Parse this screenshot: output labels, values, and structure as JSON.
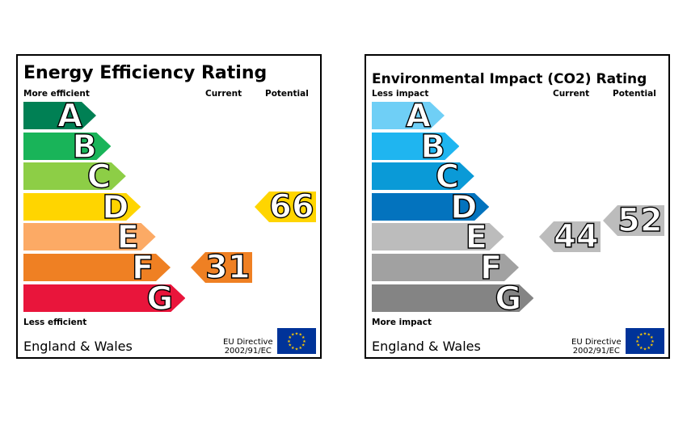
{
  "energy": {
    "title": "Energy Efficiency Rating",
    "top_label": "More efficient",
    "bottom_label": "Less efficient",
    "col_current": "Current",
    "col_potential": "Potential",
    "region": "England & Wales",
    "directive_line1": "EU Directive",
    "directive_line2": "2002/91/EC",
    "bands": [
      {
        "letter": "A",
        "color": "#008054"
      },
      {
        "letter": "B",
        "color": "#19b459"
      },
      {
        "letter": "C",
        "color": "#8dce46"
      },
      {
        "letter": "D",
        "color": "#ffd500"
      },
      {
        "letter": "E",
        "color": "#fcaa65"
      },
      {
        "letter": "F",
        "color": "#ef8023"
      },
      {
        "letter": "G",
        "color": "#e9153b"
      }
    ],
    "current": {
      "value": "31",
      "band": "F",
      "color": "#ef8023"
    },
    "potential": {
      "value": "66",
      "band": "D",
      "color": "#ffd500"
    }
  },
  "environment": {
    "title": "Environmental Impact (CO2) Rating",
    "top_label": "Less impact",
    "bottom_label": "More impact",
    "col_current": "Current",
    "col_potential": "Potential",
    "region": "England & Wales",
    "directive_line1": "EU Directive",
    "directive_line2": "2002/91/EC",
    "bands": [
      {
        "letter": "A",
        "color": "#6fcff6"
      },
      {
        "letter": "B",
        "color": "#1fb5f0"
      },
      {
        "letter": "C",
        "color": "#0a9ad7"
      },
      {
        "letter": "D",
        "color": "#0373be"
      },
      {
        "letter": "E",
        "color": "#bcbcbc"
      },
      {
        "letter": "F",
        "color": "#a1a1a1"
      },
      {
        "letter": "G",
        "color": "#848484"
      }
    ],
    "current": {
      "value": "44",
      "band": "E",
      "color": "#bcbcbc"
    },
    "potential": {
      "value": "52",
      "band": "E",
      "color": "#bcbcbc"
    }
  },
  "eu_flag_color": "#003399",
  "eu_star_color": "#ffcc00"
}
